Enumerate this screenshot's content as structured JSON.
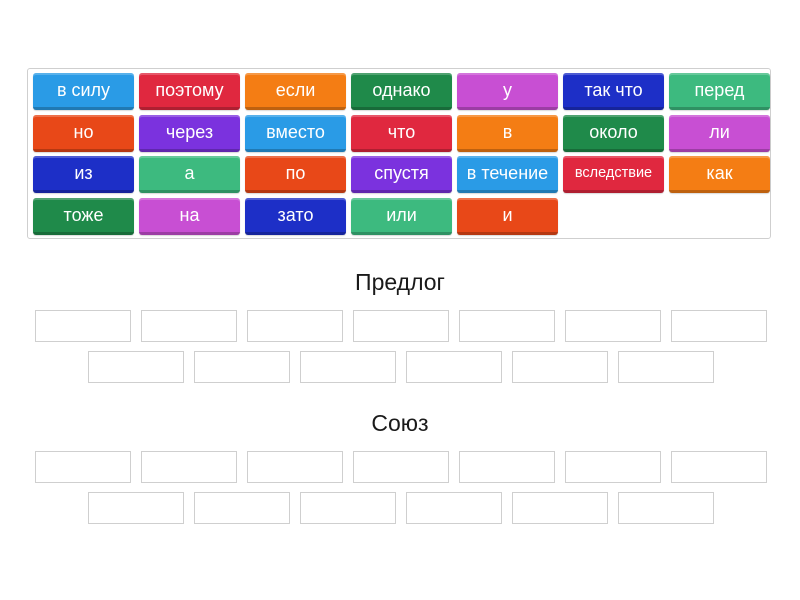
{
  "tiles": [
    {
      "label": "в силу",
      "color": "#2a9be6"
    },
    {
      "label": "поэтому",
      "color": "#e0283f"
    },
    {
      "label": "если",
      "color": "#f47d14"
    },
    {
      "label": "однако",
      "color": "#1f8a4a"
    },
    {
      "label": "у",
      "color": "#c84fd3"
    },
    {
      "label": "так что",
      "color": "#1d2fc7"
    },
    {
      "label": "перед",
      "color": "#3dba7f"
    },
    {
      "label": "но",
      "color": "#e84818"
    },
    {
      "label": "через",
      "color": "#7b32de"
    },
    {
      "label": "вместо",
      "color": "#2a9be6"
    },
    {
      "label": "что",
      "color": "#e0283f"
    },
    {
      "label": "в",
      "color": "#f47d14"
    },
    {
      "label": "около",
      "color": "#1f8a4a"
    },
    {
      "label": "ли",
      "color": "#c84fd3"
    },
    {
      "label": "из",
      "color": "#1d2fc7"
    },
    {
      "label": "а",
      "color": "#3dba7f"
    },
    {
      "label": "по",
      "color": "#e84818"
    },
    {
      "label": "спустя",
      "color": "#7b32de"
    },
    {
      "label": "в течение",
      "color": "#2a9be6"
    },
    {
      "label": "вследствие",
      "color": "#e0283f",
      "small": true
    },
    {
      "label": "как",
      "color": "#f47d14"
    },
    {
      "label": "тоже",
      "color": "#1f8a4a"
    },
    {
      "label": "на",
      "color": "#c84fd3"
    },
    {
      "label": "зато",
      "color": "#1d2fc7"
    },
    {
      "label": "или",
      "color": "#3dba7f"
    },
    {
      "label": "и",
      "color": "#e84818"
    }
  ],
  "groups": [
    {
      "title": "Предлог",
      "slot_count": 13
    },
    {
      "title": "Союз",
      "slot_count": 13
    }
  ]
}
